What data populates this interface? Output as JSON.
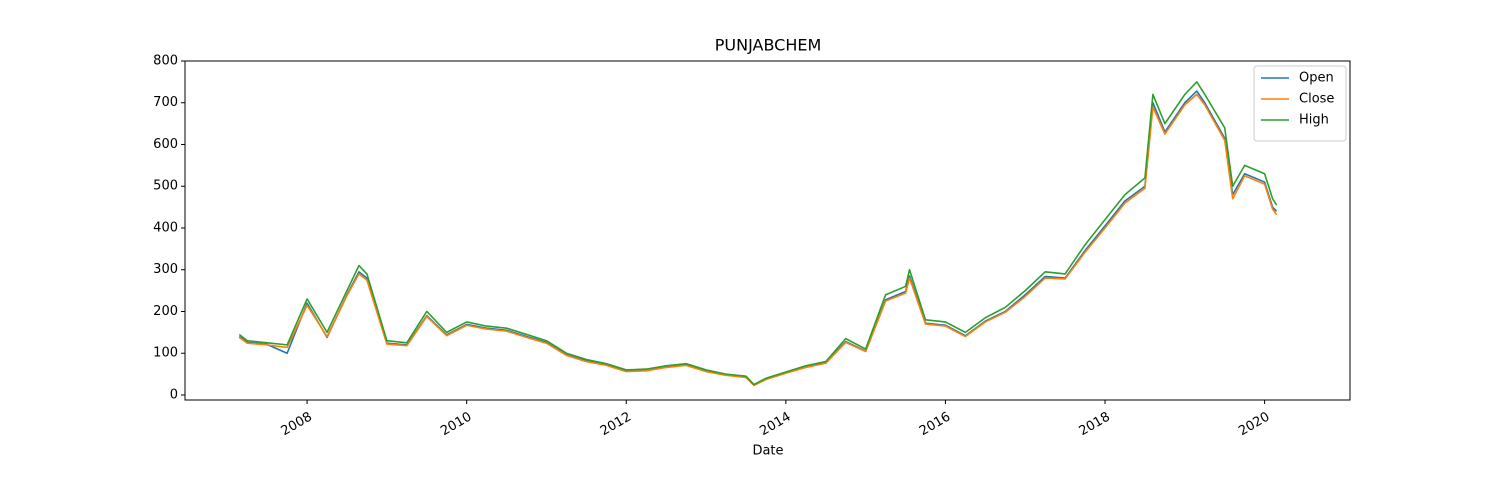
{
  "chart_data": {
    "type": "line",
    "title": "PUNJABCHEM",
    "x_label": "Date",
    "x": [
      2007.15,
      2007.25,
      2007.5,
      2007.75,
      2008.0,
      2008.25,
      2008.5,
      2008.65,
      2008.75,
      2009.0,
      2009.25,
      2009.5,
      2009.75,
      2010.0,
      2010.25,
      2010.5,
      2010.75,
      2011.0,
      2011.25,
      2011.5,
      2011.75,
      2012.0,
      2012.25,
      2012.5,
      2012.75,
      2013.0,
      2013.25,
      2013.5,
      2013.6,
      2013.75,
      2014.0,
      2014.25,
      2014.5,
      2014.75,
      2015.0,
      2015.25,
      2015.5,
      2015.55,
      2015.75,
      2016.0,
      2016.25,
      2016.5,
      2016.75,
      2017.0,
      2017.25,
      2017.5,
      2017.75,
      2018.0,
      2018.25,
      2018.5,
      2018.6,
      2018.75,
      2019.0,
      2019.15,
      2019.25,
      2019.5,
      2019.6,
      2019.75,
      2020.0,
      2020.1,
      2020.15
    ],
    "series": [
      {
        "name": "Open",
        "color": "#1f77b4",
        "values": [
          140,
          126,
          121,
          100,
          220,
          138,
          240,
          295,
          280,
          124,
          120,
          190,
          144,
          169,
          160,
          155,
          140,
          126,
          96,
          82,
          72,
          57,
          59,
          67,
          72,
          57,
          48,
          43,
          24,
          38,
          53,
          67,
          77,
          128,
          105,
          228,
          248,
          285,
          172,
          167,
          142,
          177,
          200,
          240,
          284,
          280,
          346,
          405,
          465,
          500,
          700,
          630,
          700,
          728,
          700,
          615,
          480,
          530,
          510,
          450,
          440
        ]
      },
      {
        "name": "Close",
        "color": "#ff7f0e",
        "values": [
          138,
          124,
          120,
          114,
          215,
          140,
          238,
          290,
          275,
          122,
          118,
          188,
          142,
          167,
          158,
          153,
          138,
          124,
          95,
          80,
          71,
          56,
          58,
          66,
          71,
          56,
          47,
          42,
          23,
          37,
          52,
          66,
          76,
          126,
          104,
          225,
          244,
          280,
          170,
          165,
          140,
          175,
          198,
          236,
          280,
          278,
          342,
          400,
          460,
          495,
          690,
          625,
          695,
          720,
          695,
          610,
          470,
          525,
          505,
          445,
          432
        ]
      },
      {
        "name": "High",
        "color": "#2ca02c",
        "values": [
          145,
          130,
          125,
          120,
          230,
          150,
          250,
          310,
          290,
          130,
          125,
          200,
          150,
          175,
          165,
          160,
          145,
          130,
          100,
          85,
          75,
          60,
          62,
          70,
          75,
          60,
          50,
          45,
          25,
          40,
          55,
          70,
          80,
          135,
          110,
          240,
          260,
          300,
          180,
          175,
          150,
          185,
          210,
          250,
          295,
          290,
          360,
          420,
          480,
          520,
          720,
          650,
          720,
          750,
          720,
          640,
          500,
          550,
          530,
          470,
          455
        ]
      }
    ],
    "xlim": [
      2006.47,
      2021.07
    ],
    "xticks": [
      2008,
      2010,
      2012,
      2014,
      2016,
      2018,
      2020
    ],
    "ylim": [
      -12,
      800
    ],
    "yticks": [
      0,
      100,
      200,
      300,
      400,
      500,
      600,
      700,
      800
    ],
    "legend": "upper right"
  }
}
